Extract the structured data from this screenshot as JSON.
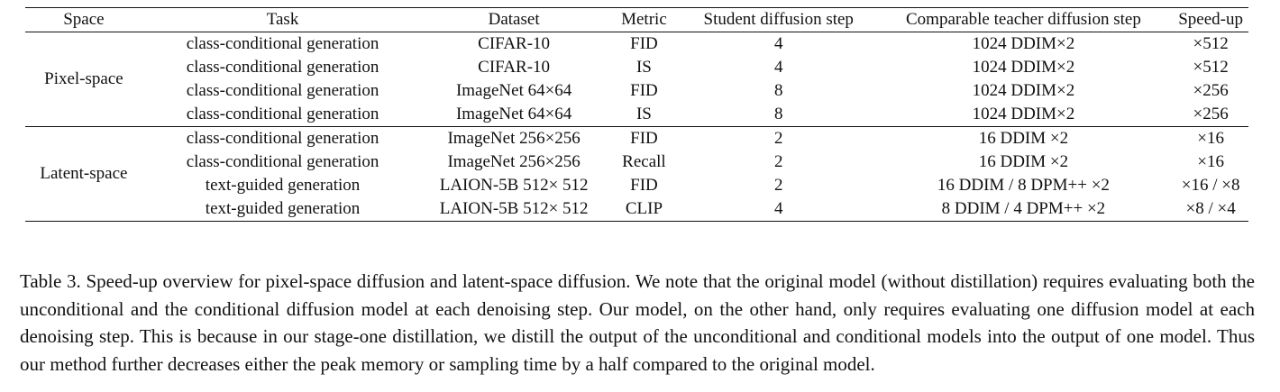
{
  "table": {
    "headers": [
      "Space",
      "Task",
      "Dataset",
      "Metric",
      "Student diffusion step",
      "Comparable teacher diffusion step",
      "Speed-up"
    ],
    "groups": [
      {
        "space": "Pixel-space",
        "rows": [
          {
            "task": "class-conditional generation",
            "dataset": "CIFAR-10",
            "metric": "FID",
            "student": "4",
            "teacher": "1024 DDIM×2",
            "speedup": "×512"
          },
          {
            "task": "class-conditional generation",
            "dataset": "CIFAR-10",
            "metric": "IS",
            "student": "4",
            "teacher": "1024 DDIM×2",
            "speedup": "×512"
          },
          {
            "task": "class-conditional generation",
            "dataset": "ImageNet 64×64",
            "metric": "FID",
            "student": "8",
            "teacher": "1024 DDIM×2",
            "speedup": "×256"
          },
          {
            "task": "class-conditional generation",
            "dataset": "ImageNet 64×64",
            "metric": "IS",
            "student": "8",
            "teacher": "1024 DDIM×2",
            "speedup": "×256"
          }
        ]
      },
      {
        "space": "Latent-space",
        "rows": [
          {
            "task": "class-conditional generation",
            "dataset": "ImageNet 256×256",
            "metric": "FID",
            "student": "2",
            "teacher": "16 DDIM ×2",
            "speedup": "×16"
          },
          {
            "task": "class-conditional generation",
            "dataset": "ImageNet 256×256",
            "metric": "Recall",
            "student": "2",
            "teacher": "16 DDIM ×2",
            "speedup": "×16"
          },
          {
            "task": "text-guided generation",
            "dataset": "LAION-5B 512× 512",
            "metric": "FID",
            "student": "2",
            "teacher": "16 DDIM / 8 DPM++ ×2",
            "speedup": "×16 / ×8"
          },
          {
            "task": "text-guided generation",
            "dataset": "LAION-5B 512× 512",
            "metric": "CLIP",
            "student": "4",
            "teacher": "8 DDIM / 4 DPM++ ×2",
            "speedup": "×8 / ×4"
          }
        ]
      }
    ]
  },
  "caption": "Table 3. Speed-up overview for pixel-space diffusion and latent-space diffusion. We note that the original model (without distillation) requires evaluating both the unconditional and the conditional diffusion model at each denoising step. Our model, on the other hand, only requires evaluating one diffusion model at each denoising step. This is because in our stage-one distillation, we distill the output of the unconditional and conditional models into the output of one model. Thus our method further decreases either the peak memory or sampling time by a half compared to the original model."
}
